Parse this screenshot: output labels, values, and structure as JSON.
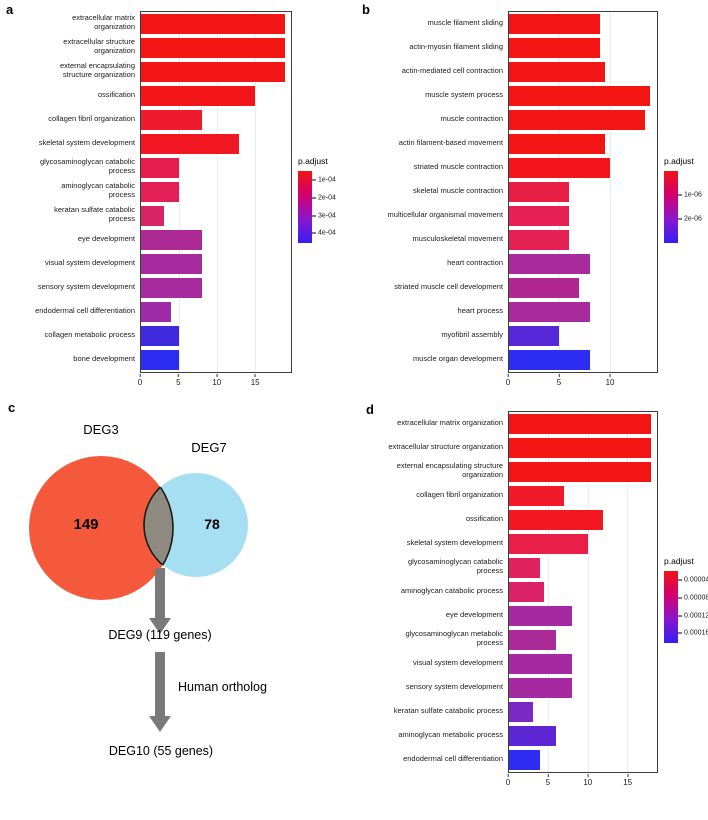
{
  "figure": {
    "panel_letters": {
      "a": "a",
      "b": "b",
      "c": "c",
      "d": "d"
    }
  },
  "chart_data": [
    {
      "id": "a",
      "type": "bar",
      "orientation": "horizontal",
      "legend_title": "p.adjust",
      "legend_position": "right",
      "legend_ticks": [
        "1e-04",
        "2e-04",
        "3e-04",
        "4e-04"
      ],
      "legend_tick_pos": [
        0.13,
        0.37,
        0.62,
        0.86
      ],
      "legend_gradient": [
        "#f31414",
        "#d2006e",
        "#8a16cc",
        "#3420f2"
      ],
      "xticks": [
        0,
        5,
        10,
        15
      ],
      "xmax": 19.8,
      "categories": [
        "extracellular matrix organization",
        "extracellular structure organization",
        "external encapsulating structure organization",
        "ossification",
        "collagen fibril organization",
        "skeletal system development",
        "glycosaminoglycan catabolic process",
        "aminoglycan catabolic process",
        "keratan sulfate catabolic process",
        "eye development",
        "visual system development",
        "sensory system development",
        "endodermal cell differentiation",
        "collagen metabolic process",
        "bone development"
      ],
      "values": [
        19,
        19,
        19,
        15,
        8,
        13,
        5,
        5,
        3,
        8,
        8,
        8,
        4,
        5,
        5
      ],
      "colors": [
        "#f31414",
        "#f31414",
        "#f31414",
        "#f21619",
        "#ef1a2e",
        "#f11722",
        "#e61e4e",
        "#e22057",
        "#d82364",
        "#ad2a95",
        "#a62b9e",
        "#a62b9e",
        "#9e2ba8",
        "#3f2ade",
        "#2c2cf2"
      ]
    },
    {
      "id": "b",
      "type": "bar",
      "orientation": "horizontal",
      "legend_title": "p.adjust",
      "legend_position": "right",
      "legend_ticks": [
        "1e-06",
        "2e-06"
      ],
      "legend_tick_pos": [
        0.33,
        0.67
      ],
      "legend_gradient": [
        "#f31414",
        "#d2006e",
        "#8a16cc",
        "#3420f2"
      ],
      "xticks": [
        0,
        5,
        10
      ],
      "xmax": 14.7,
      "categories": [
        "muscle filament sliding",
        "actin-myosin filament sliding",
        "actin-mediated cell contraction",
        "muscle system process",
        "muscle contraction",
        "actin filament-based movement",
        "striated muscle contraction",
        "skeletal muscle contraction",
        "multicellular organismal movement",
        "musculoskeletal movement",
        "heart contraction",
        "striated muscle cell development",
        "heart process",
        "myofibril assembly",
        "muscle organ development"
      ],
      "values": [
        9,
        9,
        9.5,
        14,
        13.5,
        9.5,
        10,
        6,
        6,
        6,
        8,
        7,
        8,
        5,
        8
      ],
      "colors": [
        "#f31414",
        "#f31414",
        "#f31414",
        "#f31414",
        "#f31414",
        "#f31414",
        "#f2161c",
        "#e91e44",
        "#e52052",
        "#e52052",
        "#a92a9b",
        "#b12791",
        "#a92a9b",
        "#5527d6",
        "#2c2cf2"
      ]
    },
    {
      "id": "d",
      "type": "bar",
      "orientation": "horizontal",
      "legend_title": "p.adjust",
      "legend_position": "right",
      "legend_ticks": [
        "0.00004",
        "0.00008",
        "0.00012",
        "0.00016"
      ],
      "legend_tick_pos": [
        0.13,
        0.37,
        0.62,
        0.86
      ],
      "legend_gradient": [
        "#f31414",
        "#d2006e",
        "#8a16cc",
        "#3420f2"
      ],
      "xticks": [
        0,
        5,
        10,
        15
      ],
      "xmax": 18.8,
      "categories": [
        "extracellular matrix organization",
        "extracellular structure organization",
        "external encapsulating structure organization",
        "collagen fibril organization",
        "ossification",
        "skeletal system development",
        "glycosaminoglycan catabolic process",
        "aminoglycan catabolic process",
        "eye development",
        "glycosaminoglycan metabolic process",
        "visual system development",
        "sensory system development",
        "keratan sulfate catabolic process",
        "aminoglycan metabolic process",
        "endodermal cell differentiation"
      ],
      "values": [
        18,
        18,
        18,
        7,
        12,
        10,
        4,
        4.5,
        8,
        6,
        8,
        8,
        3,
        6,
        4
      ],
      "colors": [
        "#f31414",
        "#f31414",
        "#f31414",
        "#f11a2a",
        "#f21720",
        "#e81f48",
        "#df215e",
        "#dc2266",
        "#a52aa1",
        "#ab2a97",
        "#a52aa1",
        "#a52aa1",
        "#7c28c2",
        "#5c27d2",
        "#2c2cf2"
      ]
    }
  ],
  "venn": {
    "left_label": "DEG3",
    "right_label": "DEG7",
    "left_count": "149",
    "right_count": "78",
    "result1": "DEG9 (119 genes)",
    "arrow_label": "Human ortholog",
    "result2": "DEG10 (55 genes)",
    "left_color": "#f4593c",
    "right_color": "#a6dff2",
    "overlap_color": "#8e8a80",
    "arrow_color": "#7a7a7a"
  }
}
